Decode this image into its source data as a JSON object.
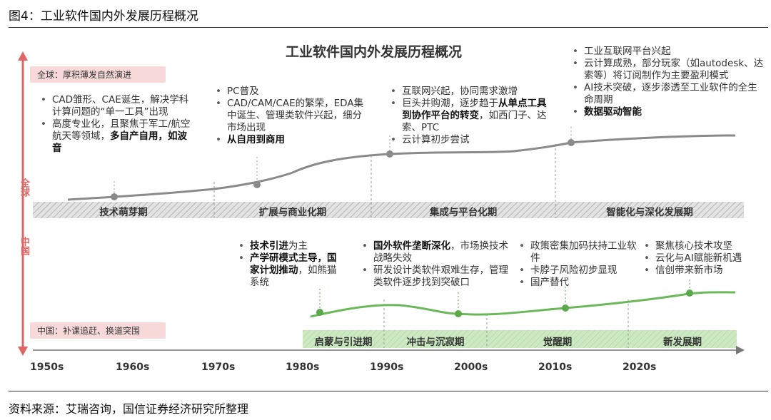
{
  "figure_title": "图4：工业软件国内外发展历程概况",
  "diagram_title": "工业软件国内外发展历程概况",
  "axis_labels": {
    "global": "全球",
    "china": "中国"
  },
  "tags": {
    "global": "全球：厚积薄发自然演进",
    "china": "中国：补课追赶、换道突围"
  },
  "decades": [
    "1950s",
    "1960s",
    "1970s",
    "1980s",
    "1990s",
    "2000s",
    "2010s",
    "2020s"
  ],
  "global_phases": [
    "技术萌芽期",
    "扩展与商业化期",
    "集成与平台化期",
    "智能化与深化发展期"
  ],
  "china_phases": [
    "启蒙与引进期",
    "冲击与沉寂期",
    "觉醒期",
    "新发展期"
  ],
  "global_notes": [
    {
      "items": [
        {
          "pre": "CAD雏形、CAE诞生，解决学科计算问题的“单一工具”出现",
          "bold": "",
          "post": ""
        },
        {
          "pre": "高度专业化，且聚焦于军工/航空航天等领域，",
          "bold": "多自产自用，如波音",
          "post": ""
        }
      ]
    },
    {
      "items": [
        {
          "pre": "PC普及",
          "bold": "",
          "post": ""
        },
        {
          "pre": "CAD/CAM/CAE的繁荣，EDA集中诞生、管理类软件兴起，细分市场出现",
          "bold": "",
          "post": ""
        },
        {
          "pre": "",
          "bold": "从自用到商用",
          "post": ""
        }
      ]
    },
    {
      "items": [
        {
          "pre": "互联网兴起，协同需求激增",
          "bold": "",
          "post": ""
        },
        {
          "pre": "巨头并购潮，逐步趋于",
          "bold": "从单点工具到协作平台的转变",
          "post": "，如西门子、达索、PTC"
        },
        {
          "pre": "云计算初步尝试",
          "bold": "",
          "post": ""
        }
      ]
    },
    {
      "items": [
        {
          "pre": "工业互联网平台兴起",
          "bold": "",
          "post": ""
        },
        {
          "pre": "云计算成熟，部分玩家（如autodesk、达索等）将订阅制作为主要盈利模式",
          "bold": "",
          "post": ""
        },
        {
          "pre": "AI技术突破，逐步渗透至工业软件的全生命周期",
          "bold": "",
          "post": ""
        },
        {
          "pre": "",
          "bold": "数据驱动智能",
          "post": ""
        }
      ]
    }
  ],
  "china_notes": [
    {
      "items": [
        {
          "pre": "",
          "bold": "技术引进",
          "post": "为主"
        },
        {
          "pre": "",
          "bold": "产学研模式主导，国家计划推动",
          "post": "，如熊猫系统"
        }
      ]
    },
    {
      "items": [
        {
          "pre": "",
          "bold": "国外软件垄断深化",
          "post": "，市场换技术战略失效"
        },
        {
          "pre": "研发设计类软件艰难生存，管理类软件逐步找到突破口",
          "bold": "",
          "post": ""
        }
      ]
    },
    {
      "items": [
        {
          "pre": "政策密集加码扶持工业软件",
          "bold": "",
          "post": ""
        },
        {
          "pre": "卡脖子风险初步显现",
          "bold": "",
          "post": ""
        },
        {
          "pre": "国产替代",
          "bold": "",
          "post": ""
        }
      ]
    },
    {
      "items": [
        {
          "pre": "聚焦核心技术攻坚",
          "bold": "",
          "post": ""
        },
        {
          "pre": "云化与AI赋能新机遇",
          "bold": "",
          "post": ""
        },
        {
          "pre": "信创带来新市场",
          "bold": "",
          "post": ""
        }
      ]
    }
  ],
  "colors": {
    "global_curve": "#8a8a8a",
    "china_curve": "#6ab85a",
    "accent": "#e06666",
    "china_band": "#c8e6c0",
    "global_band": "#cccccc"
  },
  "source_note": "资料来源：艾瑞咨询，国信证券经济研究所整理"
}
